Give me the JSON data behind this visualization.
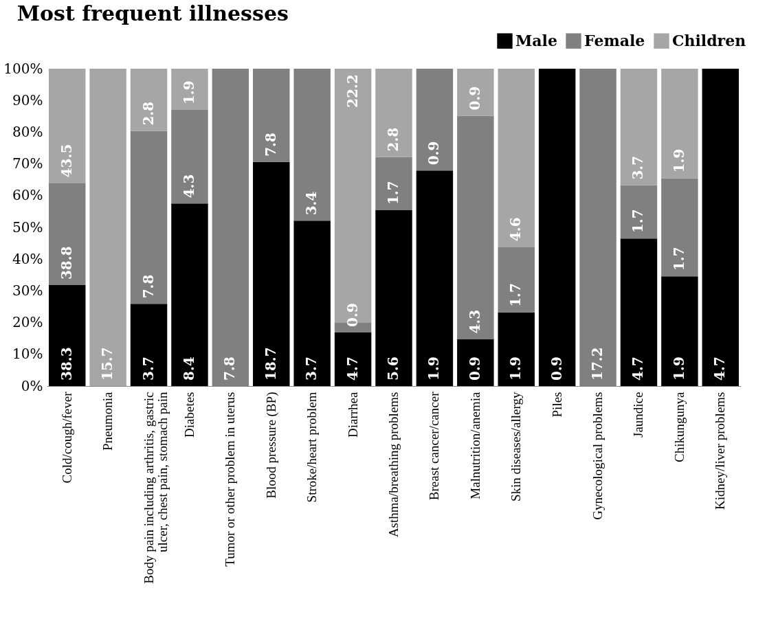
{
  "chart_data": {
    "type": "bar",
    "title": "Most frequent illnesses",
    "stacked": true,
    "legend": "top right",
    "categories": [
      "Cold/cough/fever",
      "Pneumonia",
      "Body pain including arthritis, gastric ulcer, chest pain, stomach pain",
      "Diabetes",
      "Tumor or other problem in uterus",
      "Blood pressure (BP)",
      "Stroke/heart problem",
      "Diarrhea",
      "Asthma/breathing problems",
      "Breast cancer/cancer",
      "Malnutrition/anemia",
      "Skin diseases/allergy",
      "Piles",
      "Gynecological problems",
      "Jaundice",
      "Chikungunya",
      "Kidney/liver problems"
    ],
    "ylim": [
      0,
      100
    ],
    "yticks": [
      {
        "value": 0,
        "label": "0%"
      },
      {
        "value": 10,
        "label": "10%"
      },
      {
        "value": 20,
        "label": "20%"
      },
      {
        "value": 30,
        "label": "30%"
      },
      {
        "value": 40,
        "label": "40%"
      },
      {
        "value": 50,
        "label": "50%"
      },
      {
        "value": 60,
        "label": "60%"
      },
      {
        "value": 70,
        "label": "70%"
      },
      {
        "value": 80,
        "label": "80%"
      },
      {
        "value": 90,
        "label": "90%"
      },
      {
        "value": 100,
        "label": "100%"
      }
    ],
    "series": [
      {
        "name": "Male",
        "color": "#000000",
        "values": [
          31.8,
          null,
          25.9,
          57.5,
          null,
          70.6,
          52.1,
          16.9,
          55.4,
          67.9,
          14.8,
          23.2,
          100,
          null,
          46.5,
          34.6,
          100
        ]
      },
      {
        "name": "Female",
        "color": "#808080",
        "values": [
          32.2,
          null,
          54.5,
          29.5,
          100,
          29.4,
          47.9,
          3.2,
          16.8,
          32.1,
          70.4,
          20.7,
          null,
          100,
          16.8,
          30.9,
          null
        ]
      },
      {
        "name": "Children",
        "color": "#a6a6a6",
        "values": [
          36.0,
          100,
          19.6,
          13.0,
          null,
          null,
          null,
          79.9,
          27.8,
          null,
          14.8,
          56.1,
          null,
          null,
          36.7,
          34.5,
          null
        ]
      }
    ],
    "annotations": [
      {
        "text": "38.3",
        "x": "Cold/cough/fever",
        "y": 0
      },
      {
        "text": "38.8",
        "x": "Cold/cough/fever",
        "y": 31.8
      },
      {
        "text": "43.5",
        "x": "Cold/cough/fever",
        "y": 64.0
      },
      {
        "text": "15.7",
        "x": "Pneumonia",
        "y": 0
      },
      {
        "text": "3.7",
        "x": "Body pain including arthritis, gastric ulcer, chest pain, stomach pain",
        "y": 0
      },
      {
        "text": "7.8",
        "x": "Body pain including arthritis, gastric ulcer, chest pain, stomach pain",
        "y": 25.9
      },
      {
        "text": "2.8",
        "x": "Body pain including arthritis, gastric ulcer, chest pain, stomach pain",
        "y": 80.4
      },
      {
        "text": "8.4",
        "x": "Diabetes",
        "y": 0
      },
      {
        "text": "4.3",
        "x": "Diabetes",
        "y": 57.5
      },
      {
        "text": "1.9",
        "x": "Diabetes",
        "y": 87.0
      },
      {
        "text": "7.8",
        "x": "Tumor or other problem in uterus",
        "y": 0
      },
      {
        "text": "18.7",
        "x": "Blood pressure (BP)",
        "y": 0
      },
      {
        "text": "7.8",
        "x": "Blood pressure (BP)",
        "y": 70.6
      },
      {
        "text": "3.7",
        "x": "Stroke/heart problem",
        "y": 0
      },
      {
        "text": "3.4",
        "x": "Stroke/heart problem",
        "y": 52.1
      },
      {
        "text": "4.7",
        "x": "Diarrhea",
        "y": 0
      },
      {
        "text": "0.9",
        "x": "Diarrhea",
        "y": 16.9
      },
      {
        "text": "22.2",
        "x": "Diarrhea",
        "y": 100
      },
      {
        "text": "5.6",
        "x": "Asthma/breathing problems",
        "y": 0
      },
      {
        "text": "1.7",
        "x": "Asthma/breathing problems",
        "y": 55.4
      },
      {
        "text": "2.8",
        "x": "Asthma/breathing problems",
        "y": 72.2
      },
      {
        "text": "1.9",
        "x": "Breast cancer/cancer",
        "y": 0
      },
      {
        "text": "0.9",
        "x": "Breast cancer/cancer",
        "y": 67.9
      },
      {
        "text": "0.9",
        "x": "Malnutrition/anemia",
        "y": 0
      },
      {
        "text": "4.3",
        "x": "Malnutrition/anemia",
        "y": 14.8
      },
      {
        "text": "0.9",
        "x": "Malnutrition/anemia",
        "y": 85.2
      },
      {
        "text": "1.9",
        "x": "Skin diseases/allergy",
        "y": 0
      },
      {
        "text": "1.7",
        "x": "Skin diseases/allergy",
        "y": 23.2
      },
      {
        "text": "4.6",
        "x": "Skin diseases/allergy",
        "y": 43.9
      },
      {
        "text": "0.9",
        "x": "Piles",
        "y": 0
      },
      {
        "text": "17.2",
        "x": "Gynecological problems",
        "y": 0
      },
      {
        "text": "4.7",
        "x": "Jaundice",
        "y": 0
      },
      {
        "text": "1.7",
        "x": "Jaundice",
        "y": 46.5
      },
      {
        "text": "3.7",
        "x": "Jaundice",
        "y": 63.3
      },
      {
        "text": "1.9",
        "x": "Chikungunya",
        "y": 0
      },
      {
        "text": "1.7",
        "x": "Chikungunya",
        "y": 34.6
      },
      {
        "text": "1.9",
        "x": "Chikungunya",
        "y": 65.5
      },
      {
        "text": "4.7",
        "x": "Kidney/liver problems",
        "y": 0
      }
    ]
  }
}
